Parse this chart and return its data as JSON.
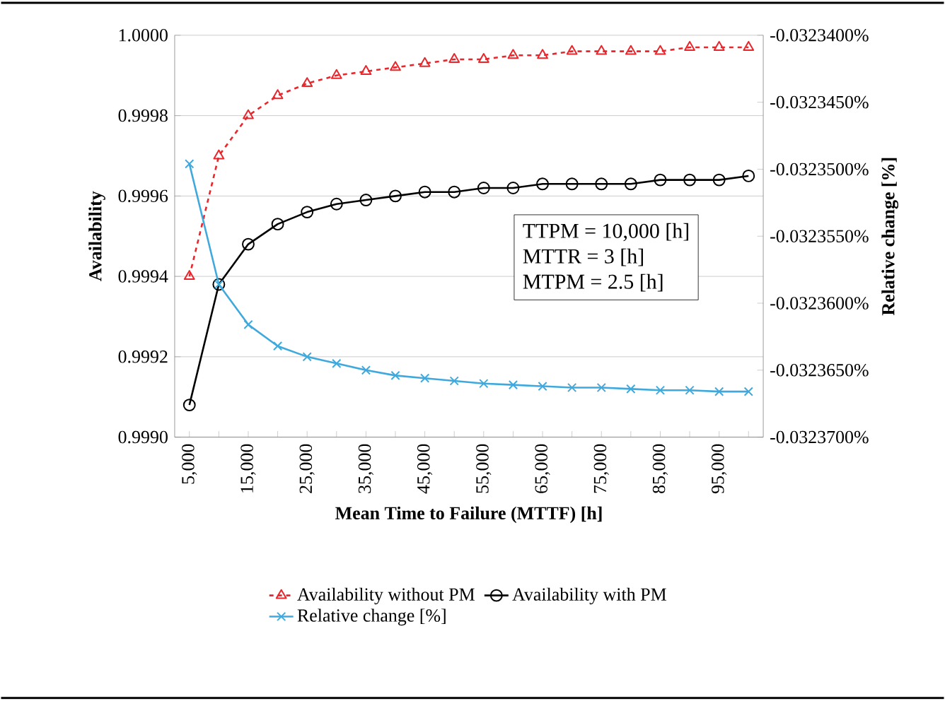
{
  "chart_data": {
    "type": "line",
    "xlabel": "Mean Time to Failure (MTTF) [h]",
    "ylabel": "Availability",
    "y2label": "Relative change [%]",
    "categories": [
      "5,000",
      null,
      "15,000",
      null,
      "25,000",
      null,
      "35,000",
      null,
      "45,000",
      null,
      "55,000",
      null,
      "65,000",
      null,
      "75,000",
      null,
      "85,000",
      null,
      "95,000",
      null
    ],
    "series": [
      {
        "name": "Availability without PM",
        "color": "#e8262b",
        "marker": "triangle",
        "line_style": "dashed",
        "values": [
          0.9994,
          0.9997,
          0.9998,
          0.99985,
          0.99988,
          0.9999,
          0.99991,
          0.99992,
          0.99993,
          0.99994,
          0.99994,
          0.99995,
          0.99995,
          0.99996,
          0.99996,
          0.99996,
          0.99996,
          0.99997,
          0.99997,
          0.99997
        ]
      },
      {
        "name": "Availability with PM",
        "color": "#000000",
        "marker": "circle",
        "line_style": "solid",
        "values": [
          0.99908,
          0.99938,
          0.99948,
          0.99953,
          0.99956,
          0.99958,
          0.99959,
          0.9996,
          0.99961,
          0.99961,
          0.99962,
          0.99962,
          0.99963,
          0.99963,
          0.99963,
          0.99963,
          0.99964,
          0.99964,
          0.99964,
          0.99965
        ]
      },
      {
        "name": "Relative change [%]",
        "color": "#3fa9dd",
        "marker": "cross",
        "line_style": "solid",
        "axis": "y2",
        "values": [
          -0.0323496,
          -0.0323586,
          -0.0323616,
          -0.0323632,
          -0.032364,
          -0.0323645,
          -0.032365,
          -0.0323654,
          -0.0323656,
          -0.0323658,
          -0.032366,
          -0.0323661,
          -0.0323662,
          -0.0323663,
          -0.0323663,
          -0.0323664,
          -0.0323665,
          -0.0323665,
          -0.0323666,
          -0.0323666
        ]
      }
    ],
    "ylim": [
      0.999,
      1.0
    ],
    "yticks": [
      {
        "value": 0.999,
        "label": "0.9990"
      },
      {
        "value": 0.9992,
        "label": "0.9992"
      },
      {
        "value": 0.9994,
        "label": "0.9994"
      },
      {
        "value": 0.9996,
        "label": "0.9996"
      },
      {
        "value": 0.9998,
        "label": "0.9998"
      },
      {
        "value": 1.0,
        "label": "1.0000"
      }
    ],
    "y2lim": [
      -0.03237,
      -0.03234
    ],
    "y2ticks": [
      {
        "value": -0.03237,
        "label": "-0.0323700%"
      },
      {
        "value": -0.032365,
        "label": "-0.0323650%"
      },
      {
        "value": -0.03236,
        "label": "-0.0323600%"
      },
      {
        "value": -0.032355,
        "label": "-0.0323550%"
      },
      {
        "value": -0.03235,
        "label": "-0.0323500%"
      },
      {
        "value": -0.032345,
        "label": "-0.0323450%"
      },
      {
        "value": -0.03234,
        "label": "-0.0323400%"
      }
    ],
    "grid": "y",
    "legend": "bottom",
    "annotations": [
      "TTPM = 10,000 [h]",
      "MTTR = 3 [h]",
      "MTPM = 2.5 [h]"
    ]
  }
}
